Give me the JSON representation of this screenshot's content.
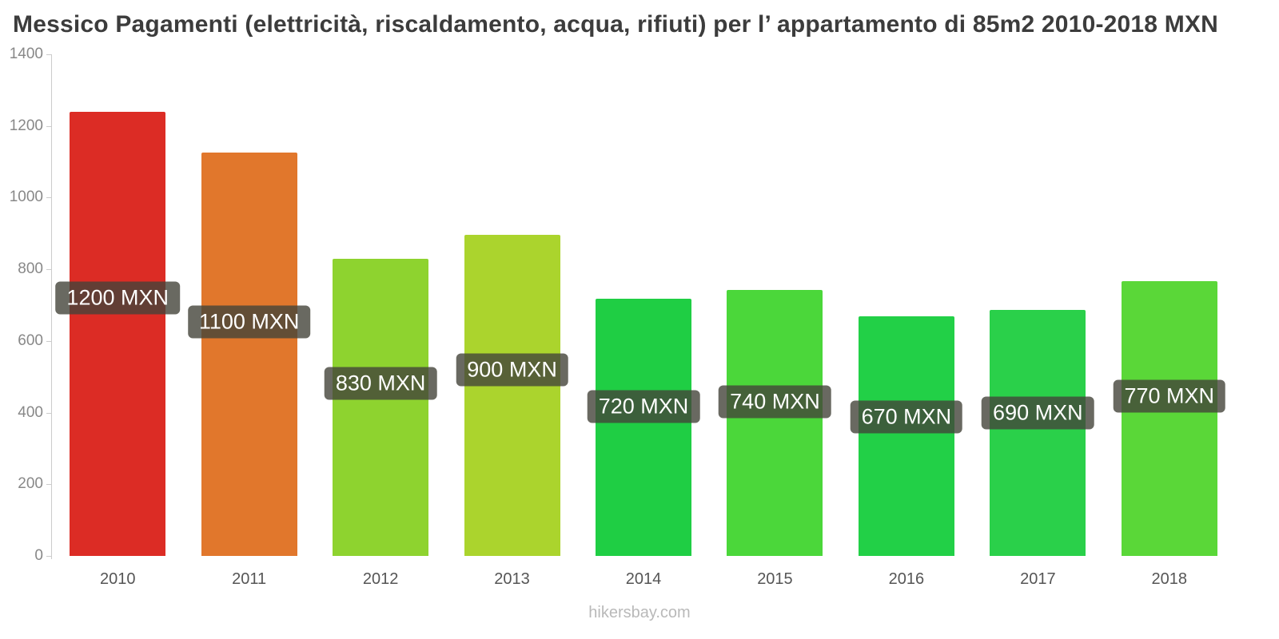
{
  "chart_data": {
    "type": "bar",
    "title": "Messico Pagamenti (elettricità, riscaldamento, acqua, rifiuti) per l’ appartamento di 85m2 2010-2018 MXN",
    "categories": [
      "2010",
      "2011",
      "2012",
      "2013",
      "2014",
      "2015",
      "2016",
      "2017",
      "2018"
    ],
    "values": [
      1200,
      1100,
      830,
      900,
      720,
      740,
      670,
      690,
      770
    ],
    "bar_values": [
      1240,
      1125,
      829,
      896,
      718,
      742,
      669,
      687,
      767
    ],
    "labels": [
      "1200 MXN",
      "1100 MXN",
      "830 MXN",
      "900 MXN",
      "720 MXN",
      "740 MXN",
      "670 MXN",
      "690 MXN",
      "770 MXN"
    ],
    "colors": [
      "#dc2c25",
      "#e1772c",
      "#8ed32f",
      "#abd42d",
      "#1fce44",
      "#4bd73a",
      "#22d047",
      "#2ad04a",
      "#5ad738"
    ],
    "label_box_color": "rgba(68, 68, 58, 0.8)",
    "xlabel": "",
    "ylabel": "",
    "ylim": [
      0,
      1400
    ],
    "yticks": [
      0,
      200,
      400,
      600,
      800,
      1000,
      1200,
      1400
    ],
    "grid": false,
    "legend": "none"
  },
  "footer": {
    "text": "hikersbay.com"
  }
}
